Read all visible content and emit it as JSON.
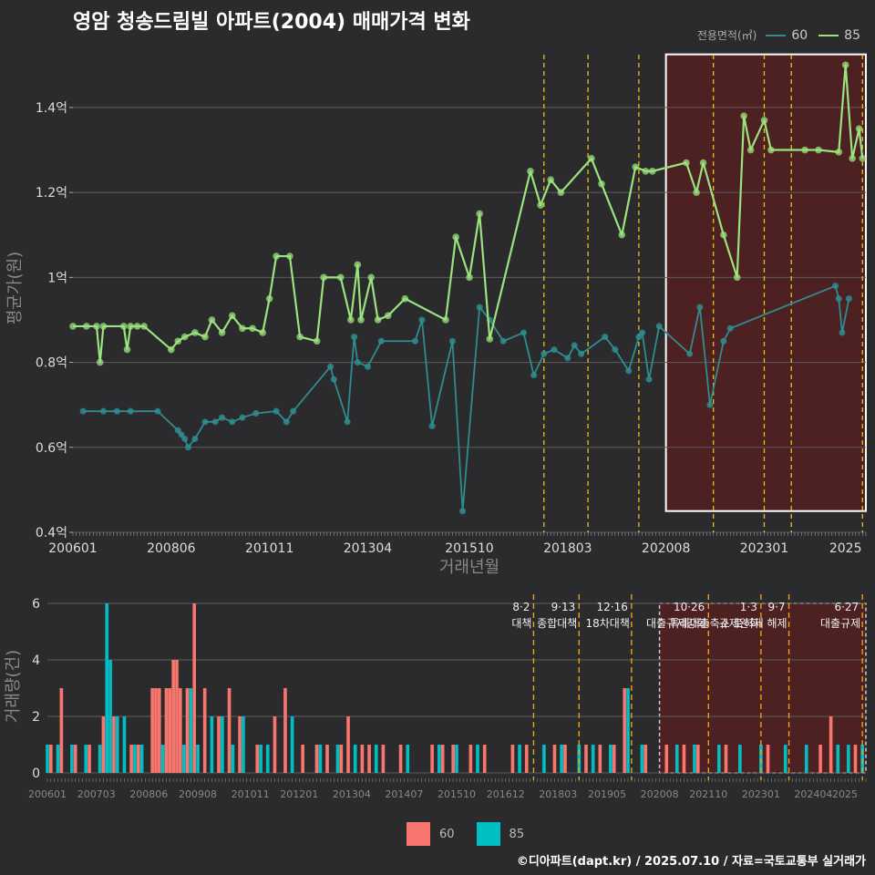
{
  "title": "영암 청송드림빌 아파트(2004) 매매가격 변화",
  "legend": {
    "title": "전용면적(㎡)",
    "items": [
      {
        "name": "60",
        "color": "#2f8c8f"
      },
      {
        "name": "85",
        "color": "#9be37e"
      }
    ]
  },
  "bar_legend": [
    {
      "name": "60",
      "color": "#f8766d"
    },
    {
      "name": "85",
      "color": "#00bfc4"
    }
  ],
  "credit": "©디아파트(dapt.kr) / 2025.07.10 / 자료=국토교통부 실거래가",
  "chart_data": [
    {
      "type": "line",
      "xlabel": "거래년월",
      "ylabel": "평균가(원)",
      "xlim": [
        "2006-01",
        "2025-07"
      ],
      "ylim": [
        0.4,
        1.55
      ],
      "y_unit": "억",
      "x_ticks": [
        "200601",
        "200806",
        "201011",
        "201304",
        "201510",
        "201803",
        "202008",
        "202301",
        "2025"
      ],
      "y_ticks": [
        "0.4억",
        "0.6억",
        "0.8억",
        "1억",
        "1.2억",
        "1.4억"
      ],
      "policy_lines": [
        "2017-08",
        "2018-09",
        "2019-12",
        "2021-10",
        "2023-01",
        "2023-09",
        "2025-06"
      ],
      "highlight": {
        "from": "2020-08",
        "to": "2025-07"
      },
      "series": [
        {
          "name": "85",
          "points": [
            [
              "2006-01",
              0.885
            ],
            [
              "2006-05",
              0.885
            ],
            [
              "2006-08",
              0.885
            ],
            [
              "2006-09",
              0.8
            ],
            [
              "2006-10",
              0.885
            ],
            [
              "2007-04",
              0.885
            ],
            [
              "2007-05",
              0.83
            ],
            [
              "2007-06",
              0.885
            ],
            [
              "2007-08",
              0.885
            ],
            [
              "2007-10",
              0.885
            ],
            [
              "2008-06",
              0.83
            ],
            [
              "2008-08",
              0.85
            ],
            [
              "2008-10",
              0.86
            ],
            [
              "2009-01",
              0.87
            ],
            [
              "2009-04",
              0.86
            ],
            [
              "2009-06",
              0.9
            ],
            [
              "2009-09",
              0.87
            ],
            [
              "2009-12",
              0.91
            ],
            [
              "2010-03",
              0.88
            ],
            [
              "2010-06",
              0.88
            ],
            [
              "2010-09",
              0.87
            ],
            [
              "2010-11",
              0.95
            ],
            [
              "2011-01",
              1.05
            ],
            [
              "2011-05",
              1.05
            ],
            [
              "2011-08",
              0.86
            ],
            [
              "2012-01",
              0.85
            ],
            [
              "2012-03",
              1.0
            ],
            [
              "2012-08",
              1.0
            ],
            [
              "2012-11",
              0.9
            ],
            [
              "2013-01",
              1.03
            ],
            [
              "2013-02",
              0.9
            ],
            [
              "2013-05",
              1.0
            ],
            [
              "2013-07",
              0.9
            ],
            [
              "2013-10",
              0.91
            ],
            [
              "2014-03",
              0.95
            ],
            [
              "2015-03",
              0.9
            ],
            [
              "2015-06",
              1.095
            ],
            [
              "2015-10",
              1.0
            ],
            [
              "2016-01",
              1.15
            ],
            [
              "2016-04",
              0.855
            ],
            [
              "2017-04",
              1.25
            ],
            [
              "2017-07",
              1.17
            ],
            [
              "2017-10",
              1.23
            ],
            [
              "2018-01",
              1.2
            ],
            [
              "2018-10",
              1.28
            ],
            [
              "2019-01",
              1.22
            ],
            [
              "2019-07",
              1.1
            ],
            [
              "2019-11",
              1.26
            ],
            [
              "2020-02",
              1.25
            ],
            [
              "2020-04",
              1.25
            ],
            [
              "2021-02",
              1.27
            ],
            [
              "2021-05",
              1.2
            ],
            [
              "2021-07",
              1.27
            ],
            [
              "2022-01",
              1.1
            ],
            [
              "2022-05",
              1.0
            ],
            [
              "2022-07",
              1.38
            ],
            [
              "2022-09",
              1.3
            ],
            [
              "2023-01",
              1.37
            ],
            [
              "2023-03",
              1.3
            ],
            [
              "2024-01",
              1.3
            ],
            [
              "2024-05",
              1.3
            ],
            [
              "2024-11",
              1.295
            ],
            [
              "2025-01",
              1.5
            ],
            [
              "2025-03",
              1.28
            ],
            [
              "2025-05",
              1.35
            ],
            [
              "2025-06",
              1.28
            ]
          ]
        },
        {
          "name": "60",
          "points": [
            [
              "2006-04",
              0.685
            ],
            [
              "2006-10",
              0.685
            ],
            [
              "2007-02",
              0.685
            ],
            [
              "2007-06",
              0.685
            ],
            [
              "2008-02",
              0.685
            ],
            [
              "2008-08",
              0.64
            ],
            [
              "2008-09",
              0.63
            ],
            [
              "2008-10",
              0.62
            ],
            [
              "2008-11",
              0.6
            ],
            [
              "2009-01",
              0.62
            ],
            [
              "2009-04",
              0.66
            ],
            [
              "2009-07",
              0.66
            ],
            [
              "2009-09",
              0.67
            ],
            [
              "2009-12",
              0.66
            ],
            [
              "2010-03",
              0.67
            ],
            [
              "2010-07",
              0.68
            ],
            [
              "2011-01",
              0.685
            ],
            [
              "2011-04",
              0.66
            ],
            [
              "2011-06",
              0.685
            ],
            [
              "2012-05",
              0.79
            ],
            [
              "2012-06",
              0.76
            ],
            [
              "2012-10",
              0.66
            ],
            [
              "2012-12",
              0.86
            ],
            [
              "2013-01",
              0.8
            ],
            [
              "2013-04",
              0.79
            ],
            [
              "2013-08",
              0.85
            ],
            [
              "2014-06",
              0.85
            ],
            [
              "2014-08",
              0.9
            ],
            [
              "2014-11",
              0.65
            ],
            [
              "2015-05",
              0.85
            ],
            [
              "2015-08",
              0.45
            ],
            [
              "2016-01",
              0.93
            ],
            [
              "2016-04",
              0.9
            ],
            [
              "2016-08",
              0.85
            ],
            [
              "2017-02",
              0.87
            ],
            [
              "2017-05",
              0.77
            ],
            [
              "2017-08",
              0.82
            ],
            [
              "2017-11",
              0.83
            ],
            [
              "2018-03",
              0.81
            ],
            [
              "2018-05",
              0.84
            ],
            [
              "2018-07",
              0.82
            ],
            [
              "2019-02",
              0.86
            ],
            [
              "2019-05",
              0.83
            ],
            [
              "2019-09",
              0.78
            ],
            [
              "2019-12",
              0.86
            ],
            [
              "2020-01",
              0.87
            ],
            [
              "2020-03",
              0.76
            ],
            [
              "2020-06",
              0.885
            ],
            [
              "2021-03",
              0.82
            ],
            [
              "2021-06",
              0.93
            ],
            [
              "2021-09",
              0.7
            ],
            [
              "2022-01",
              0.85
            ],
            [
              "2022-03",
              0.88
            ],
            [
              "2024-10",
              0.98
            ],
            [
              "2024-11",
              0.95
            ],
            [
              "2024-12",
              0.87
            ],
            [
              "2025-02",
              0.95
            ]
          ]
        }
      ]
    },
    {
      "type": "bar",
      "ylabel": "거래량(건)",
      "ylim": [
        0,
        6
      ],
      "y_ticks": [
        "0",
        "2",
        "4",
        "6"
      ],
      "x_ticks": [
        "200601",
        "200703",
        "200806",
        "200908",
        "201011",
        "201201",
        "201304",
        "201407",
        "201510",
        "201612",
        "201803",
        "201905",
        "202008",
        "202110",
        "202301",
        "202404",
        "2025"
      ],
      "policies": [
        {
          "date": "2017-08",
          "label": "8·2 대책"
        },
        {
          "date": "2018-09",
          "label": "9·13 종합대책"
        },
        {
          "date": "2019-12",
          "label": "12·16 18차대책"
        },
        {
          "date": "2021-10",
          "label": "10·26 대출규제강화"
        },
        {
          "date": "2023-01",
          "label": "1·3 규제완화"
        },
        {
          "date": "2023-09",
          "label": "9·7 특례대출축소 토허제 해제"
        },
        {
          "date": "2025-06",
          "label": "6·27 대출규제"
        }
      ],
      "series": [
        {
          "name": "60",
          "values": [
            [
              "2006-02",
              1
            ],
            [
              "2006-05",
              3
            ],
            [
              "2006-09",
              1
            ],
            [
              "2007-01",
              1
            ],
            [
              "2007-05",
              2
            ],
            [
              "2007-08",
              2
            ],
            [
              "2008-01",
              1
            ],
            [
              "2008-03",
              1
            ],
            [
              "2008-07",
              3
            ],
            [
              "2008-08",
              3
            ],
            [
              "2008-09",
              3
            ],
            [
              "2008-11",
              3
            ],
            [
              "2008-12",
              3
            ],
            [
              "2009-01",
              4
            ],
            [
              "2009-02",
              4
            ],
            [
              "2009-03",
              3
            ],
            [
              "2009-05",
              3
            ],
            [
              "2009-07",
              6
            ],
            [
              "2009-10",
              3
            ],
            [
              "2010-02",
              2
            ],
            [
              "2010-05",
              3
            ],
            [
              "2010-08",
              2
            ],
            [
              "2011-01",
              1
            ],
            [
              "2011-06",
              2
            ],
            [
              "2011-09",
              3
            ],
            [
              "2012-02",
              1
            ],
            [
              "2012-06",
              1
            ],
            [
              "2012-09",
              1
            ],
            [
              "2013-01",
              1
            ],
            [
              "2013-03",
              2
            ],
            [
              "2013-07",
              1
            ],
            [
              "2013-09",
              1
            ],
            [
              "2014-01",
              1
            ],
            [
              "2014-06",
              1
            ],
            [
              "2015-03",
              1
            ],
            [
              "2015-06",
              1
            ],
            [
              "2015-09",
              1
            ],
            [
              "2016-02",
              1
            ],
            [
              "2016-06",
              1
            ],
            [
              "2017-02",
              1
            ],
            [
              "2017-06",
              1
            ],
            [
              "2018-02",
              1
            ],
            [
              "2018-05",
              1
            ],
            [
              "2018-11",
              1
            ],
            [
              "2019-03",
              1
            ],
            [
              "2019-07",
              1
            ],
            [
              "2019-10",
              3
            ],
            [
              "2020-04",
              1
            ],
            [
              "2020-10",
              1
            ],
            [
              "2021-03",
              1
            ],
            [
              "2021-07",
              1
            ],
            [
              "2022-03",
              1
            ],
            [
              "2023-03",
              1
            ],
            [
              "2024-06",
              1
            ],
            [
              "2024-09",
              2
            ],
            [
              "2025-04",
              1
            ]
          ]
        },
        {
          "name": "85",
          "values": [
            [
              "2006-01",
              1
            ],
            [
              "2006-04",
              1
            ],
            [
              "2006-08",
              1
            ],
            [
              "2006-12",
              1
            ],
            [
              "2007-04",
              1
            ],
            [
              "2007-06",
              6
            ],
            [
              "2007-07",
              4
            ],
            [
              "2007-09",
              2
            ],
            [
              "2007-11",
              2
            ],
            [
              "2008-02",
              1
            ],
            [
              "2008-04",
              1
            ],
            [
              "2008-10",
              1
            ],
            [
              "2009-04",
              1
            ],
            [
              "2009-06",
              3
            ],
            [
              "2009-08",
              1
            ],
            [
              "2009-12",
              2
            ],
            [
              "2010-03",
              2
            ],
            [
              "2010-06",
              1
            ],
            [
              "2010-09",
              2
            ],
            [
              "2011-02",
              1
            ],
            [
              "2011-04",
              1
            ],
            [
              "2011-11",
              2
            ],
            [
              "2012-07",
              1
            ],
            [
              "2012-12",
              1
            ],
            [
              "2013-05",
              1
            ],
            [
              "2013-11",
              1
            ],
            [
              "2014-08",
              1
            ],
            [
              "2015-05",
              1
            ],
            [
              "2015-10",
              1
            ],
            [
              "2016-04",
              1
            ],
            [
              "2017-04",
              1
            ],
            [
              "2017-11",
              1
            ],
            [
              "2018-04",
              1
            ],
            [
              "2018-09",
              1
            ],
            [
              "2019-01",
              1
            ],
            [
              "2019-06",
              1
            ],
            [
              "2019-11",
              3
            ],
            [
              "2020-03",
              1
            ],
            [
              "2021-01",
              1
            ],
            [
              "2021-06",
              1
            ],
            [
              "2022-01",
              1
            ],
            [
              "2022-07",
              1
            ],
            [
              "2023-01",
              1
            ],
            [
              "2023-08",
              1
            ],
            [
              "2024-02",
              1
            ],
            [
              "2024-11",
              1
            ],
            [
              "2025-02",
              1
            ],
            [
              "2025-06",
              1
            ]
          ]
        }
      ]
    }
  ]
}
